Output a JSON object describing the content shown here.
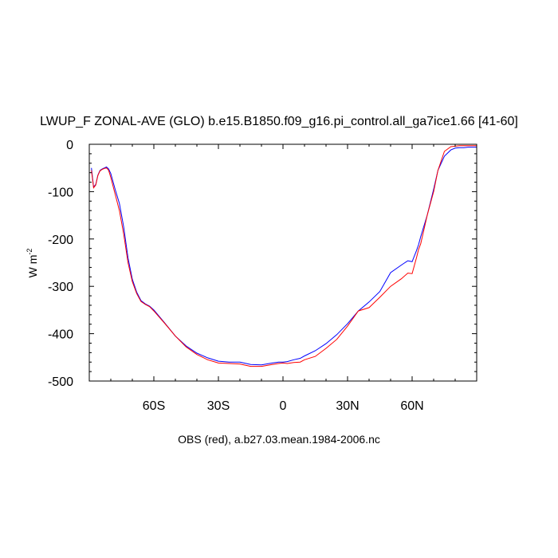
{
  "chart_data": {
    "type": "line",
    "title": "LWUP_F ZONAL-AVE (GLO) b.e15.B1850.f09_g16.pi_control.all_ga7ice1.66 [41-60]",
    "ylabel_main": "W m",
    "ylabel_exp": "-2",
    "xlabel": "OBS (red), a.b27.03.mean.1984-2006.nc",
    "xlim": [
      -90,
      90
    ],
    "ylim": [
      -500,
      0
    ],
    "x_ticks": [
      {
        "value": -60,
        "label": "60S"
      },
      {
        "value": -30,
        "label": "30S"
      },
      {
        "value": 0,
        "label": "0"
      },
      {
        "value": 30,
        "label": "30N"
      },
      {
        "value": 60,
        "label": "60N"
      }
    ],
    "y_ticks": [
      {
        "value": 0,
        "label": "0"
      },
      {
        "value": -100,
        "label": "-100"
      },
      {
        "value": -200,
        "label": "-200"
      },
      {
        "value": -300,
        "label": "-300"
      },
      {
        "value": -400,
        "label": "-400"
      },
      {
        "value": -500,
        "label": "-500"
      }
    ],
    "grid": false,
    "series": [
      {
        "color": "#0000ff",
        "x": [
          -89,
          -88,
          -87,
          -86,
          -85,
          -84,
          -83,
          -82,
          -81,
          -80,
          -78,
          -76,
          -74,
          -72,
          -70,
          -68,
          -66,
          -64,
          -62,
          -60,
          -55,
          -50,
          -45,
          -40,
          -35,
          -30,
          -25,
          -20,
          -15,
          -10,
          -5,
          -2,
          0,
          2,
          5,
          8,
          10,
          15,
          20,
          25,
          30,
          35,
          40,
          45,
          50,
          55,
          58,
          60,
          62,
          63,
          64,
          65,
          67,
          70,
          72,
          75,
          78,
          80,
          82,
          84,
          86,
          88,
          90
        ],
        "y": [
          -50,
          -90,
          -85,
          -65,
          -55,
          -52,
          -50,
          -48,
          -52,
          -62,
          -95,
          -125,
          -175,
          -240,
          -285,
          -312,
          -330,
          -337,
          -342,
          -350,
          -377,
          -405,
          -426,
          -441,
          -451,
          -458,
          -460,
          -460,
          -465,
          -466,
          -462,
          -460,
          -460,
          -459,
          -455,
          -452,
          -447,
          -436,
          -421,
          -402,
          -379,
          -352,
          -333,
          -311,
          -271,
          -255,
          -246,
          -248,
          -225,
          -212,
          -195,
          -180,
          -150,
          -95,
          -55,
          -25,
          -12,
          -8,
          -7,
          -7,
          -6,
          -6,
          -6
        ]
      },
      {
        "color": "#ff0000",
        "x": [
          -89,
          -88,
          -87,
          -86,
          -85,
          -84,
          -83,
          -82,
          -81,
          -80,
          -78,
          -76,
          -74,
          -72,
          -70,
          -68,
          -66,
          -64,
          -62,
          -60,
          -55,
          -50,
          -45,
          -40,
          -35,
          -30,
          -25,
          -20,
          -15,
          -10,
          -5,
          -2,
          0,
          2,
          5,
          8,
          10,
          15,
          20,
          25,
          30,
          35,
          40,
          45,
          50,
          55,
          58,
          60,
          62,
          63,
          64,
          65,
          67,
          70,
          72,
          75,
          78,
          80,
          82,
          84,
          86,
          88,
          90
        ],
        "y": [
          -55,
          -92,
          -86,
          -66,
          -56,
          -53,
          -51,
          -50,
          -55,
          -70,
          -105,
          -140,
          -190,
          -250,
          -290,
          -315,
          -332,
          -338,
          -343,
          -352,
          -378,
          -405,
          -428,
          -444,
          -455,
          -462,
          -463,
          -464,
          -469,
          -469,
          -465,
          -463,
          -462,
          -463,
          -461,
          -460,
          -455,
          -448,
          -431,
          -412,
          -384,
          -352,
          -345,
          -323,
          -300,
          -284,
          -272,
          -273,
          -240,
          -222,
          -210,
          -190,
          -150,
          -100,
          -55,
          -15,
          -5,
          -4,
          -3,
          -3,
          -3,
          -3,
          -3
        ]
      }
    ]
  }
}
